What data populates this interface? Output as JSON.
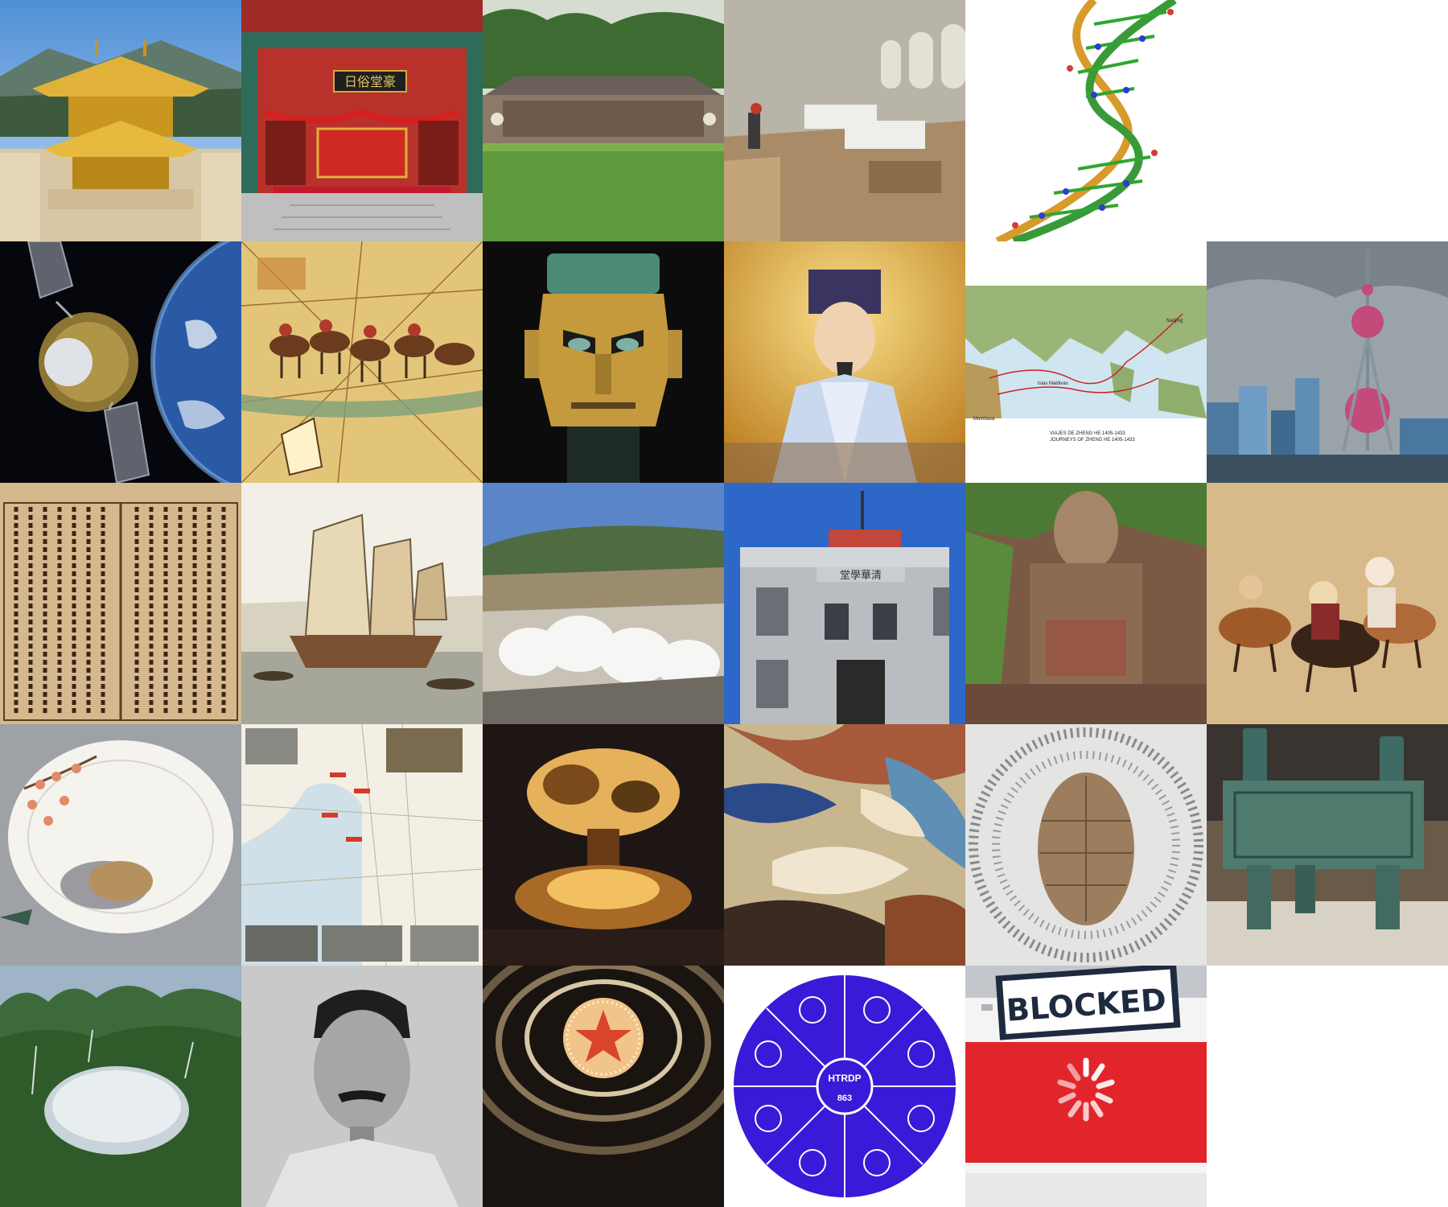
{
  "tiles": {
    "golden_pavilion": "golden-pavilion",
    "red_gate_hall": "red-gate-hall",
    "old_hall_lawn": "old-hall-lawn",
    "hospital_ward": "hospital-ward",
    "dna_helix": "dna-helix",
    "satellite_earth": "satellite-earth",
    "caravan_map": "caravan-map",
    "bronze_mask": "bronze-mask",
    "scholar_portrait": "scholar-portrait",
    "voyage_map": "voyage-map",
    "pearl_tower": "pearl-tower",
    "woodblock_text": "woodblock-text",
    "junk_ship": "junk-ship",
    "dam_spillway": "dam-spillway",
    "hall_building": "hall-building",
    "giant_buddha": "giant-buddha",
    "hunt_painting": "hunt-painting",
    "porcelain_plate": "porcelain-plate",
    "campaign_map": "campaign-map",
    "mushroom_cloud": "mushroom-cloud",
    "flying_apsaras": "flying-apsaras",
    "turtle_shell": "turtle-shell",
    "bronze_ding": "bronze-ding",
    "radio_telescope": "radio-telescope",
    "luxun_portrait": "luxun-portrait",
    "star_ceiling": "star-ceiling",
    "program_863_logo": "program-863-logo",
    "blocked_browser": "blocked-browser"
  },
  "texts": {
    "red_gate_plaque": "日俗堂豪",
    "hall_plaque": "堂學華清",
    "voyage_title_es": "VIAJES DE ZHENG HE 1405-1433",
    "voyage_title_en": "JOURNEYS OF ZHENG HE 1405-1433",
    "voyage_place_mombasa": "Mombasa",
    "voyage_place_maldives": "Islas Maldivas",
    "voyage_place_nanjing": "Nanjing",
    "logo_acronym": "HTRDP",
    "logo_number": "863",
    "blocked_label": "BLOCKED"
  },
  "colors": {
    "logo_blue": "#3b19d8",
    "blocked_red": "#e2252b",
    "gold": "#d9a521",
    "bronze_green": "#4f7a6e"
  }
}
